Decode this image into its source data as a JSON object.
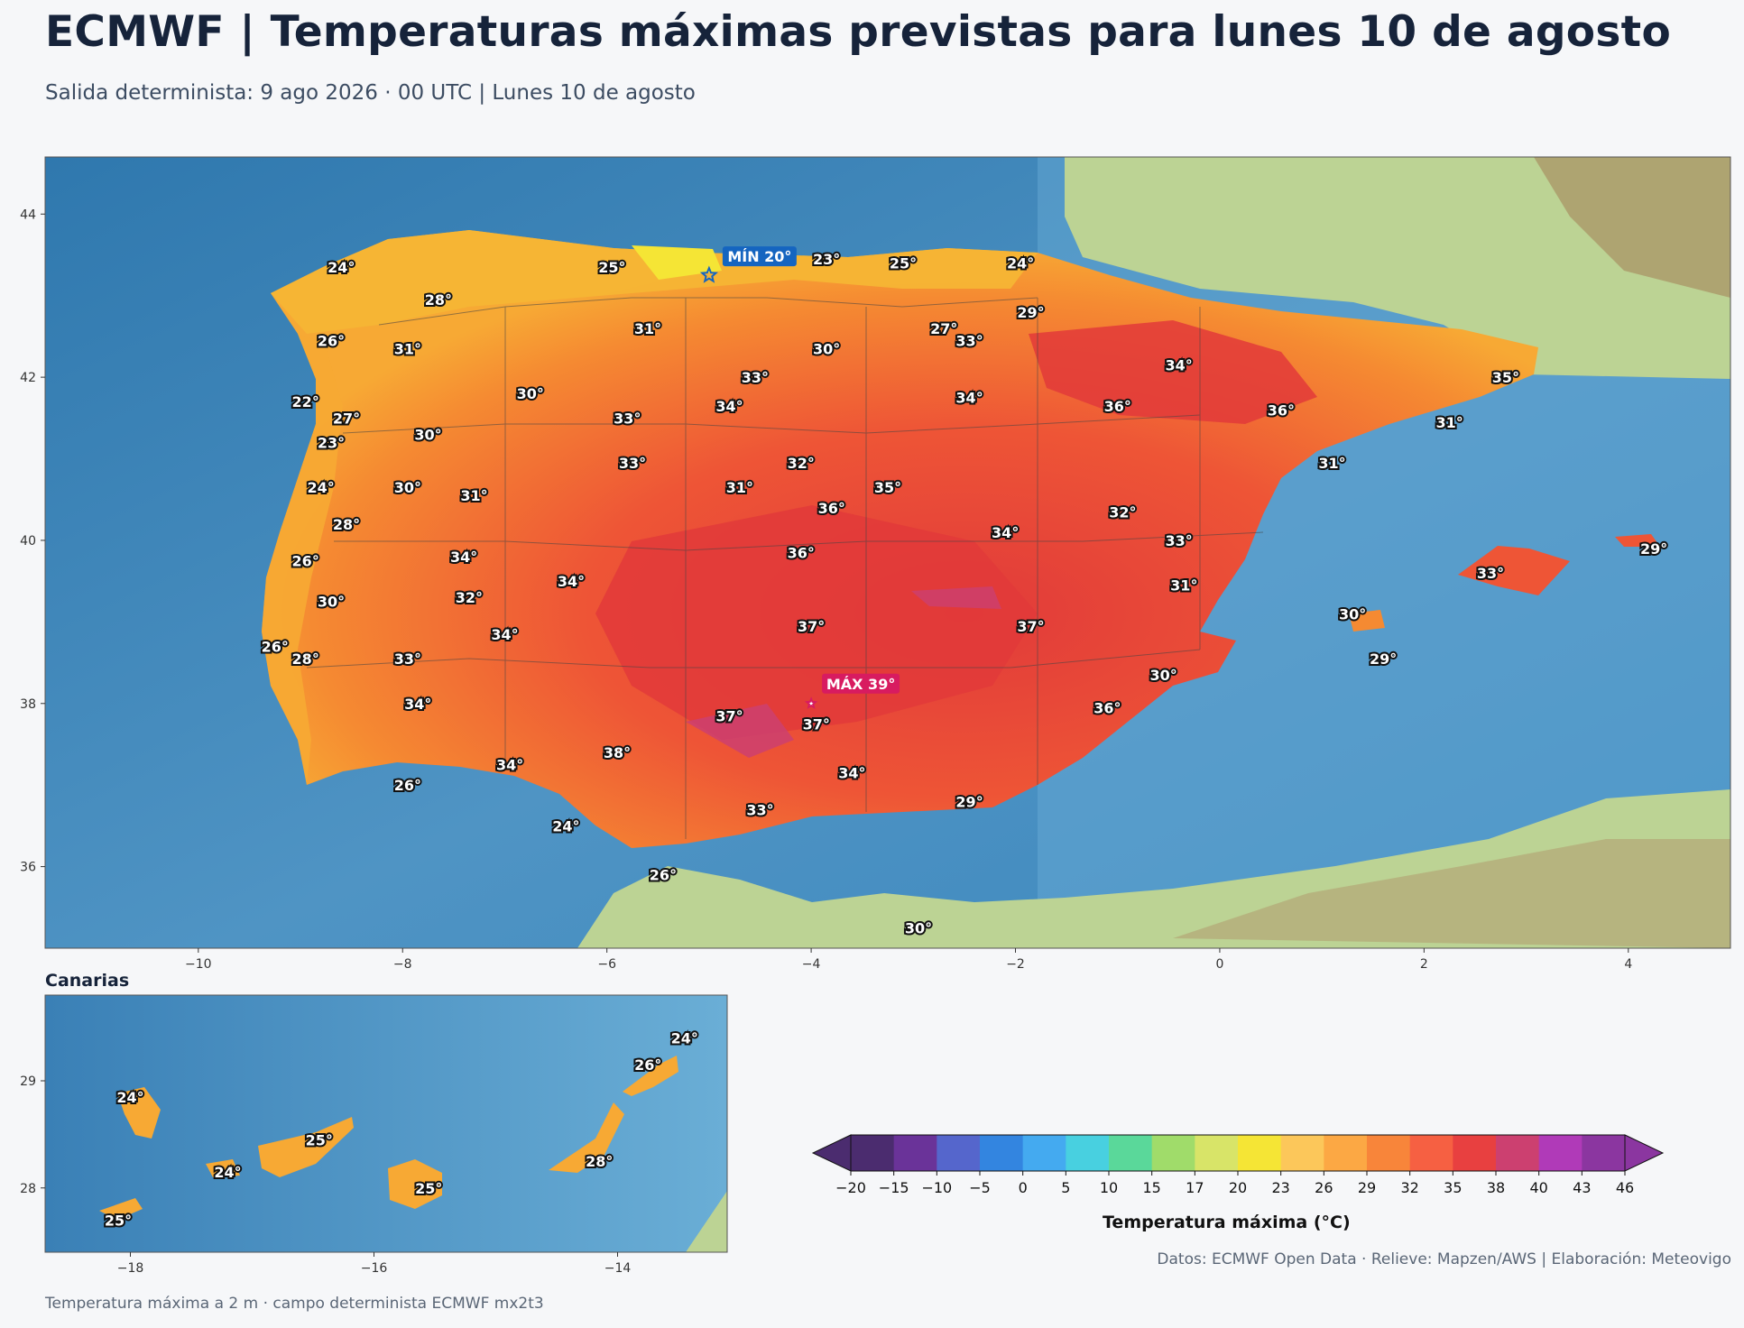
{
  "header": {
    "title": "ECMWF | Temperaturas máximas previstas para lunes 10 de agosto",
    "subtitle": "Salida determinista: 9 ago 2026 · 00 UTC  |  Lunes 10 de agosto"
  },
  "colors": {
    "sea": "#3c84b8",
    "land": "#bcd394",
    "borders": "#444444",
    "min_marker": "#1565c0",
    "max_marker": "#d81b60"
  },
  "main_map": {
    "lon_ticks": [
      -10,
      -8,
      -6,
      -4,
      -2,
      0,
      2,
      4
    ],
    "lat_ticks": [
      36,
      38,
      40,
      42,
      44
    ],
    "extent": {
      "lon": [
        -11.5,
        5
      ],
      "lat": [
        35,
        44.7
      ]
    },
    "min_label": "MÍN 20°",
    "max_label": "MÁX 39°",
    "min_point": {
      "lon": -5.0,
      "lat": 43.25
    },
    "max_point": {
      "lon": -4.0,
      "lat": 38.0
    },
    "points": [
      {
        "lon": -8.6,
        "lat": 43.35,
        "t": "24°"
      },
      {
        "lon": -5.95,
        "lat": 43.35,
        "t": "25°"
      },
      {
        "lon": -3.85,
        "lat": 43.45,
        "t": "23°"
      },
      {
        "lon": -3.1,
        "lat": 43.4,
        "t": "25°"
      },
      {
        "lon": -1.95,
        "lat": 43.4,
        "t": "24°"
      },
      {
        "lon": -7.65,
        "lat": 42.95,
        "t": "28°"
      },
      {
        "lon": -1.85,
        "lat": 42.8,
        "t": "29°"
      },
      {
        "lon": -5.6,
        "lat": 42.6,
        "t": "31°"
      },
      {
        "lon": -2.7,
        "lat": 42.6,
        "t": "27°"
      },
      {
        "lon": -2.45,
        "lat": 42.45,
        "t": "33°"
      },
      {
        "lon": -8.7,
        "lat": 42.45,
        "t": "26°"
      },
      {
        "lon": -7.95,
        "lat": 42.35,
        "t": "31°"
      },
      {
        "lon": -3.85,
        "lat": 42.35,
        "t": "30°"
      },
      {
        "lon": -0.4,
        "lat": 42.15,
        "t": "34°"
      },
      {
        "lon": 2.8,
        "lat": 42.0,
        "t": "35°"
      },
      {
        "lon": -4.55,
        "lat": 42.0,
        "t": "33°"
      },
      {
        "lon": -6.75,
        "lat": 41.8,
        "t": "30°"
      },
      {
        "lon": -2.45,
        "lat": 41.75,
        "t": "34°"
      },
      {
        "lon": -4.8,
        "lat": 41.65,
        "t": "34°"
      },
      {
        "lon": -8.95,
        "lat": 41.7,
        "t": "22°"
      },
      {
        "lon": -1.0,
        "lat": 41.65,
        "t": "36°"
      },
      {
        "lon": 0.6,
        "lat": 41.6,
        "t": "36°"
      },
      {
        "lon": -8.55,
        "lat": 41.5,
        "t": "27°"
      },
      {
        "lon": -5.8,
        "lat": 41.5,
        "t": "33°"
      },
      {
        "lon": 2.25,
        "lat": 41.45,
        "t": "31°"
      },
      {
        "lon": -7.75,
        "lat": 41.3,
        "t": "30°"
      },
      {
        "lon": -8.7,
        "lat": 41.2,
        "t": "23°"
      },
      {
        "lon": -5.75,
        "lat": 40.95,
        "t": "33°"
      },
      {
        "lon": -4.1,
        "lat": 40.95,
        "t": "32°"
      },
      {
        "lon": 1.1,
        "lat": 40.95,
        "t": "31°"
      },
      {
        "lon": -8.8,
        "lat": 40.65,
        "t": "24°"
      },
      {
        "lon": -7.95,
        "lat": 40.65,
        "t": "30°"
      },
      {
        "lon": -4.7,
        "lat": 40.65,
        "t": "31°"
      },
      {
        "lon": -3.25,
        "lat": 40.65,
        "t": "35°"
      },
      {
        "lon": -7.3,
        "lat": 40.55,
        "t": "31°"
      },
      {
        "lon": -3.8,
        "lat": 40.4,
        "t": "36°"
      },
      {
        "lon": -0.95,
        "lat": 40.35,
        "t": "32°"
      },
      {
        "lon": -8.55,
        "lat": 40.2,
        "t": "28°"
      },
      {
        "lon": -2.1,
        "lat": 40.1,
        "t": "34°"
      },
      {
        "lon": -0.4,
        "lat": 40.0,
        "t": "33°"
      },
      {
        "lon": 4.25,
        "lat": 39.9,
        "t": "29°"
      },
      {
        "lon": -4.1,
        "lat": 39.85,
        "t": "36°"
      },
      {
        "lon": -7.4,
        "lat": 39.8,
        "t": "34°"
      },
      {
        "lon": -8.95,
        "lat": 39.75,
        "t": "26°"
      },
      {
        "lon": 2.65,
        "lat": 39.6,
        "t": "33°"
      },
      {
        "lon": -6.35,
        "lat": 39.5,
        "t": "34°"
      },
      {
        "lon": -0.35,
        "lat": 39.45,
        "t": "31°"
      },
      {
        "lon": -7.35,
        "lat": 39.3,
        "t": "32°"
      },
      {
        "lon": -8.7,
        "lat": 39.25,
        "t": "30°"
      },
      {
        "lon": 1.3,
        "lat": 39.1,
        "t": "30°"
      },
      {
        "lon": -4.0,
        "lat": 38.95,
        "t": "37°"
      },
      {
        "lon": -1.85,
        "lat": 38.95,
        "t": "37°"
      },
      {
        "lon": -7.0,
        "lat": 38.85,
        "t": "34°"
      },
      {
        "lon": -9.25,
        "lat": 38.7,
        "t": "26°"
      },
      {
        "lon": -7.95,
        "lat": 38.55,
        "t": "33°"
      },
      {
        "lon": -8.95,
        "lat": 38.55,
        "t": "28°"
      },
      {
        "lon": 1.6,
        "lat": 38.55,
        "t": "29°"
      },
      {
        "lon": -0.55,
        "lat": 38.35,
        "t": "30°"
      },
      {
        "lon": -7.85,
        "lat": 38.0,
        "t": "34°"
      },
      {
        "lon": -1.1,
        "lat": 37.95,
        "t": "36°"
      },
      {
        "lon": -4.8,
        "lat": 37.85,
        "t": "37°"
      },
      {
        "lon": -3.95,
        "lat": 37.75,
        "t": "37°"
      },
      {
        "lon": -5.9,
        "lat": 37.4,
        "t": "38°"
      },
      {
        "lon": -6.95,
        "lat": 37.25,
        "t": "34°"
      },
      {
        "lon": -3.6,
        "lat": 37.15,
        "t": "34°"
      },
      {
        "lon": -7.95,
        "lat": 37.0,
        "t": "26°"
      },
      {
        "lon": -2.45,
        "lat": 36.8,
        "t": "29°"
      },
      {
        "lon": -4.5,
        "lat": 36.7,
        "t": "33°"
      },
      {
        "lon": -6.4,
        "lat": 36.5,
        "t": "24°"
      },
      {
        "lon": -5.45,
        "lat": 35.9,
        "t": "26°"
      },
      {
        "lon": -2.95,
        "lat": 35.25,
        "t": "30°"
      }
    ]
  },
  "canarias": {
    "title": "Canarias",
    "lon_ticks": [
      -18,
      -16,
      -14
    ],
    "lat_ticks": [
      28,
      29
    ],
    "extent": {
      "lon": [
        -18.7,
        -13.1
      ],
      "lat": [
        27.4,
        29.8
      ]
    },
    "points": [
      {
        "lon": -18.0,
        "lat": 28.85,
        "t": "24°"
      },
      {
        "lon": -17.2,
        "lat": 28.15,
        "t": "24°"
      },
      {
        "lon": -16.45,
        "lat": 28.45,
        "t": "25°"
      },
      {
        "lon": -15.55,
        "lat": 28.0,
        "t": "25°"
      },
      {
        "lon": -14.15,
        "lat": 28.25,
        "t": "28°"
      },
      {
        "lon": -13.75,
        "lat": 29.15,
        "t": "26°"
      },
      {
        "lon": -13.45,
        "lat": 29.4,
        "t": "24°"
      },
      {
        "lon": -18.1,
        "lat": 27.7,
        "t": "25°"
      }
    ]
  },
  "legend": {
    "label": "Temperatura máxima (°C)",
    "ticks": [
      "−20",
      "−15",
      "−10",
      "−5",
      "0",
      "5",
      "10",
      "15",
      "17",
      "20",
      "23",
      "26",
      "29",
      "32",
      "35",
      "38",
      "40",
      "43",
      "46"
    ],
    "colors": [
      "#4b2c6f",
      "#6a3399",
      "#5566cc",
      "#3385e0",
      "#44aaf0",
      "#48d0e0",
      "#5ad89a",
      "#a0dc6a",
      "#d8e468",
      "#f5e535",
      "#fcc75a",
      "#fca844",
      "#f8853a",
      "#f66042",
      "#e84040",
      "#cc4070",
      "#b03ab8",
      "#8b36a0"
    ]
  },
  "footer": {
    "credits": "Datos: ECMWF Open Data · Relieve: Mapzen/AWS  |  Elaboración: Meteovigo",
    "note": "Temperatura máxima a 2 m · campo determinista ECMWF mx2t3"
  }
}
